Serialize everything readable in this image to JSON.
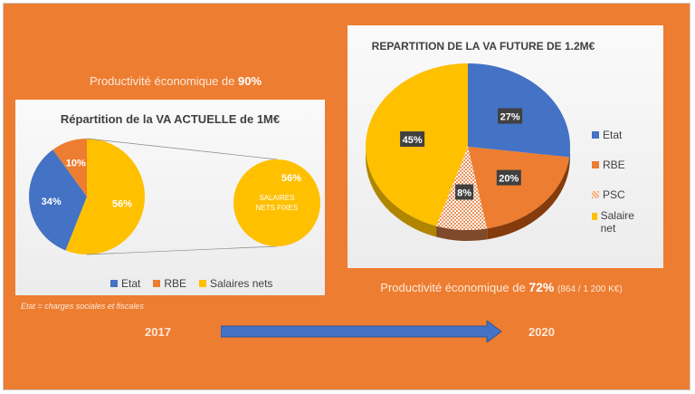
{
  "left_caption": {
    "prefix": "Productivité économique de ",
    "value": "90%"
  },
  "footnote": "Etat = charges sociales et fiscales",
  "right_caption": {
    "prefix": "Productivité économique de ",
    "value": "72%",
    "detail": "(864 / 1 200 K€)"
  },
  "timeline": {
    "start": "2017",
    "end": "2020"
  },
  "colors": {
    "etat": "#4472C4",
    "rbe": "#ED7D31",
    "salaires": "#FFC000",
    "psc": "#F4B183",
    "background": "#ED7D31"
  },
  "chart_data": [
    {
      "type": "pie",
      "title": "Répartition de la VA ACTUELLE de 1M€",
      "slices": [
        {
          "name": "Salaires nets",
          "value": 56,
          "label": "56%"
        },
        {
          "name": "Etat",
          "value": 34,
          "label": "34%"
        },
        {
          "name": "RBE",
          "value": 10,
          "label": "10%"
        }
      ],
      "legend": [
        "Etat",
        "RBE",
        "Salaires nets"
      ],
      "secondary": {
        "label": "56%",
        "text1": "SALAIRES",
        "text2": "NETS FIXES"
      }
    },
    {
      "type": "pie",
      "title": "REPARTITION DE LA VA FUTURE DE 1.2M€",
      "slices": [
        {
          "name": "Etat",
          "value": 27,
          "label": "27%"
        },
        {
          "name": "RBE",
          "value": 20,
          "label": "20%"
        },
        {
          "name": "PSC",
          "value": 8,
          "label": "8%"
        },
        {
          "name": "Salaire net",
          "value": 45,
          "label": "45%"
        }
      ],
      "legend": [
        "Etat",
        "RBE",
        "PSC",
        "Salaire net"
      ]
    }
  ]
}
